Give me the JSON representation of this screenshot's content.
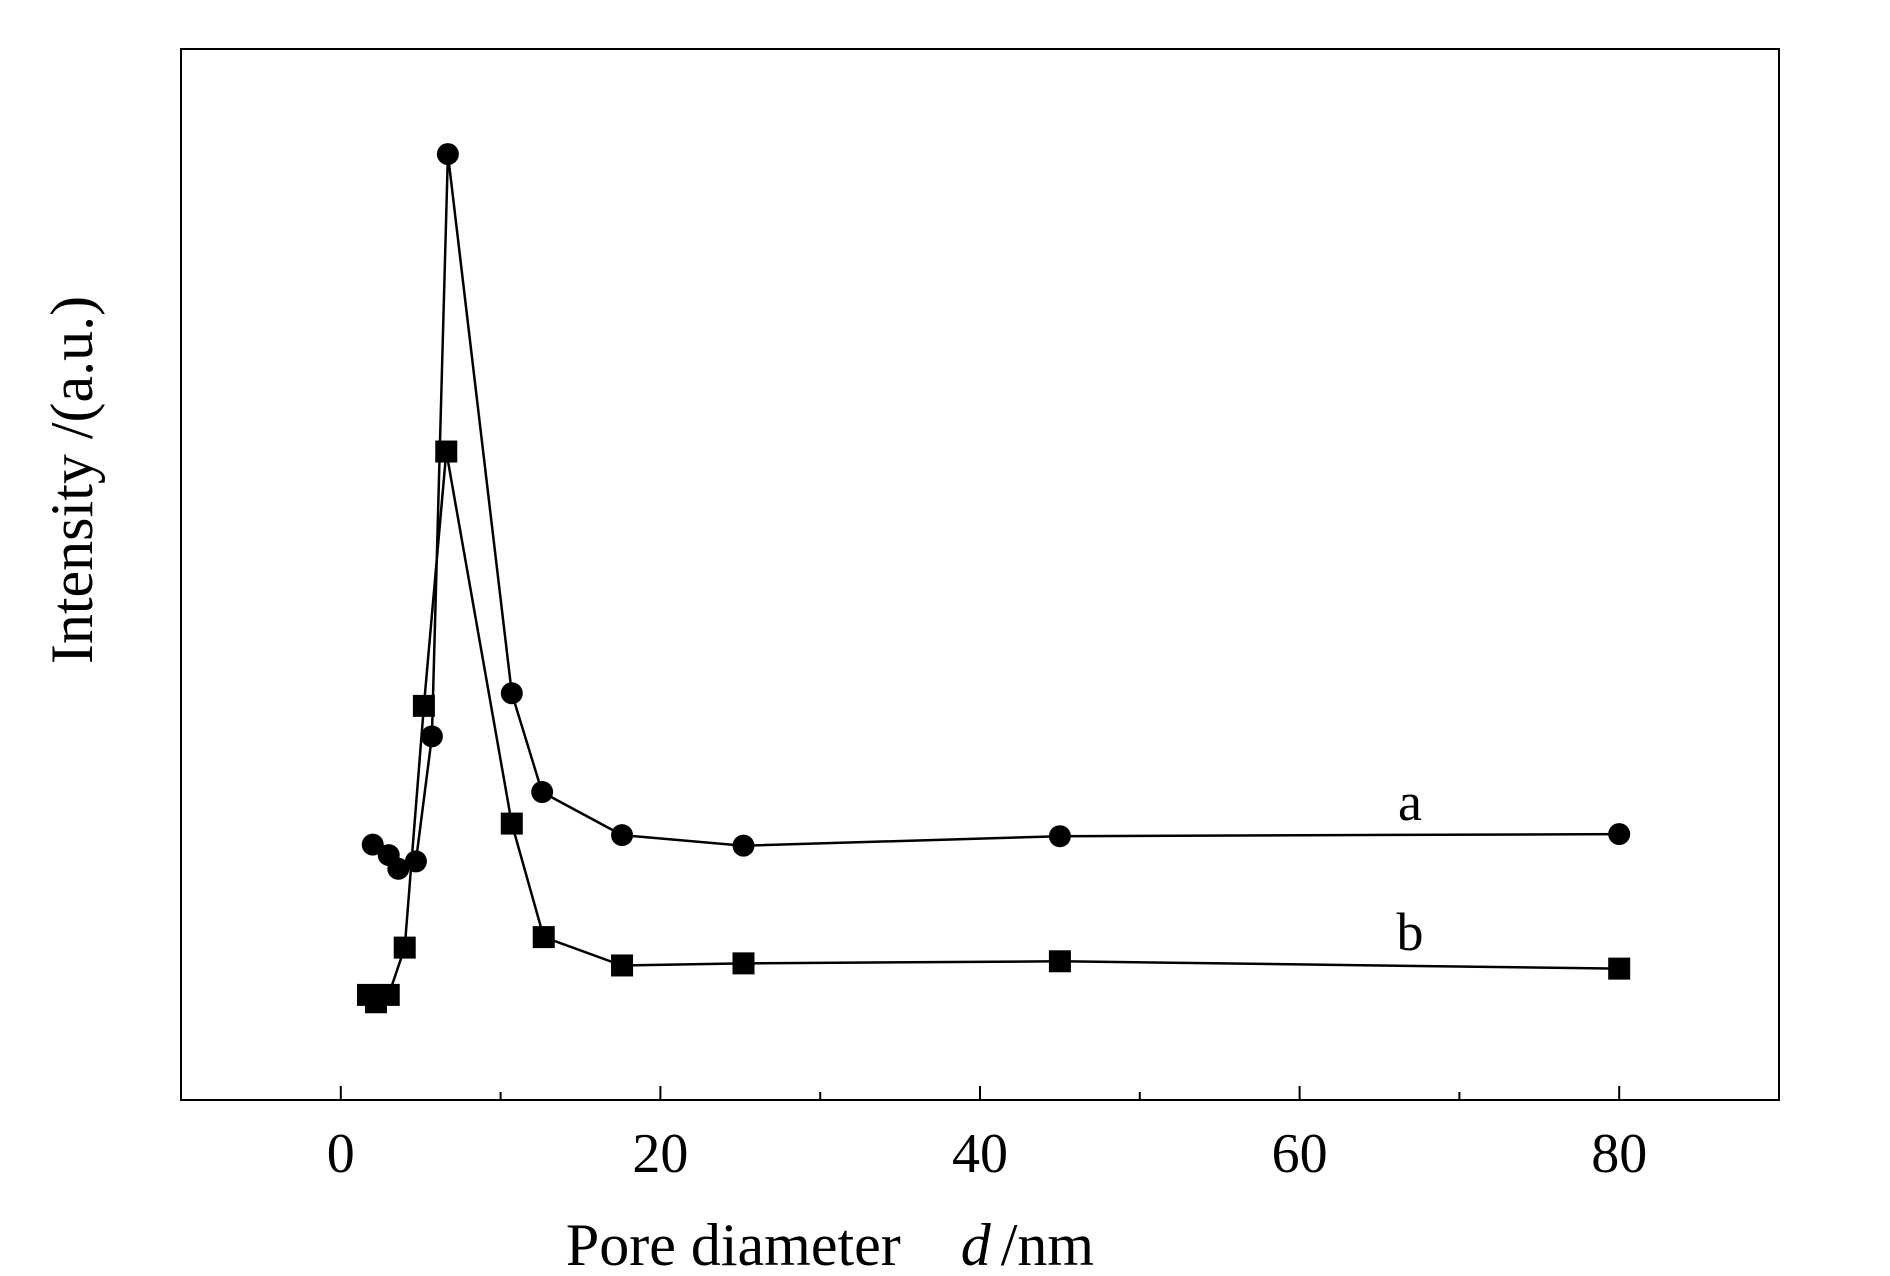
{
  "chart_data": {
    "type": "line",
    "title": "",
    "xlabel": "Pore diameter",
    "xlabel_var": "d",
    "xlabel_unit": "/nm",
    "ylabel": "Intensity /(a.u.)",
    "xlim": [
      -10,
      90
    ],
    "ylim": [
      0,
      100
    ],
    "x_ticks": [
      0,
      20,
      40,
      60,
      80
    ],
    "x_minor_ticks": [
      10,
      30,
      50,
      70
    ],
    "grid": false,
    "y_tick_labels_shown": false,
    "series": [
      {
        "name": "a",
        "marker": "circle",
        "x": [
          2,
          3,
          3.6,
          4.7,
          5.7,
          6.7,
          10.7,
          12.6,
          17.6,
          25.2,
          45,
          80
        ],
        "y": [
          24.3,
          23.3,
          22.0,
          22.7,
          34.6,
          90.0,
          38.7,
          29.3,
          25.2,
          24.2,
          25.1,
          25.3
        ]
      },
      {
        "name": "b",
        "marker": "square",
        "x": [
          1.7,
          2.2,
          3.0,
          4.0,
          5.2,
          6.6,
          10.7,
          12.7,
          17.6,
          25.2,
          45,
          80
        ],
        "y": [
          10.0,
          9.3,
          10.0,
          14.5,
          37.5,
          61.7,
          26.3,
          15.5,
          12.8,
          13.0,
          13.2,
          12.5
        ]
      }
    ]
  }
}
